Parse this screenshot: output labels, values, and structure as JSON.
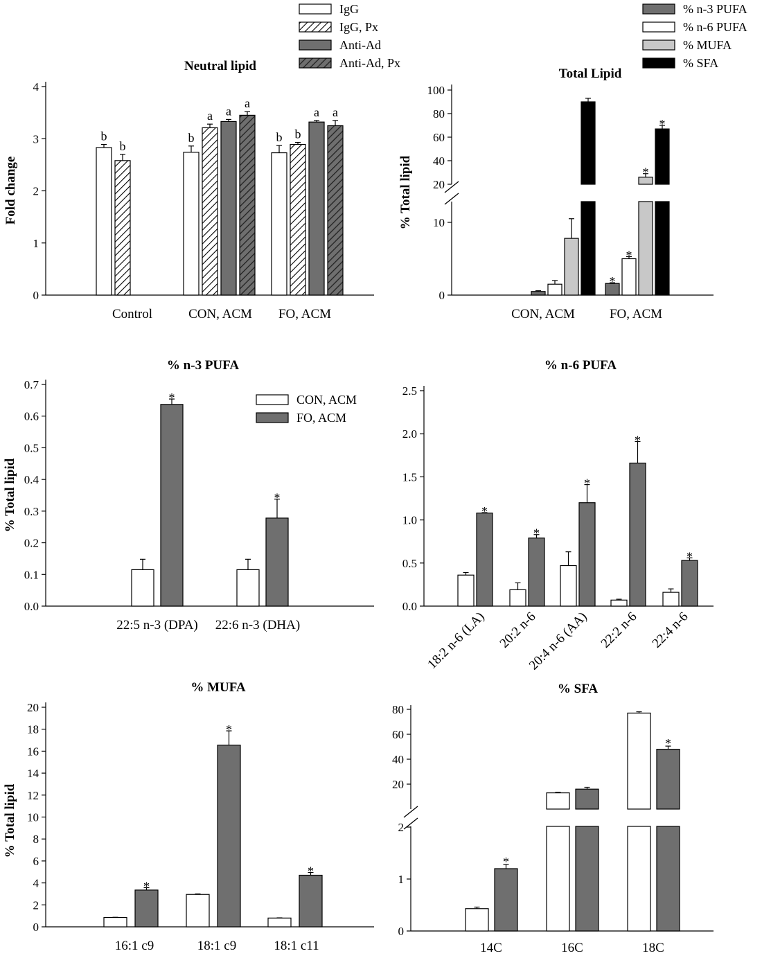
{
  "colors": {
    "dark": "#6f6f6f",
    "light": "#c8c8c8",
    "black": "#000000",
    "white": "#ffffff"
  },
  "chart_data": [
    {
      "id": "neutral",
      "type": "bar",
      "title": "Neutral lipid",
      "ylabel": "Fold change",
      "ylim": [
        0,
        4
      ],
      "yticks": [
        "0",
        "1",
        "2",
        "3",
        "4"
      ],
      "categories": [
        "Control",
        "CON, ACM",
        "FO, ACM"
      ],
      "series": [
        {
          "name": "IgG",
          "fill": "white",
          "values": [
            2.83,
            2.74,
            2.73
          ],
          "errors": [
            0.06,
            0.12,
            0.14
          ],
          "labels": [
            "b",
            "b",
            "b"
          ]
        },
        {
          "name": "IgG, Px",
          "fill": "hatch",
          "values": [
            2.58,
            3.21,
            2.89
          ],
          "errors": [
            0.12,
            0.07,
            0.04
          ],
          "labels": [
            "b",
            "a",
            "b"
          ]
        },
        {
          "name": "Anti-Ad",
          "fill": "dark",
          "values": [
            null,
            3.33,
            3.32
          ],
          "errors": [
            null,
            0.04,
            0.03
          ],
          "labels": [
            "",
            "a",
            "a"
          ]
        },
        {
          "name": "Anti-Ad, Px",
          "fill": "darkhatch",
          "values": [
            null,
            3.45,
            3.25
          ],
          "errors": [
            null,
            0.07,
            0.1
          ],
          "labels": [
            "",
            "a",
            "a"
          ]
        }
      ]
    },
    {
      "id": "total",
      "type": "bar",
      "title": "Total Lipid",
      "ylabel": "% Total lipid",
      "yticks_upper": [
        "20",
        "40",
        "60",
        "80",
        "100"
      ],
      "yticks_lower": [
        "0",
        "10"
      ],
      "categories": [
        "CON, ACM",
        "FO, ACM"
      ],
      "series": [
        {
          "name": "% n-3 PUFA",
          "fill": "dark",
          "values": [
            0.5,
            1.6
          ],
          "errors": [
            0.1,
            0.1
          ],
          "labels": [
            "",
            "*"
          ]
        },
        {
          "name": "% n-6 PUFA",
          "fill": "white",
          "values": [
            1.5,
            5.0
          ],
          "errors": [
            0.5,
            0.3
          ],
          "labels": [
            "",
            "*"
          ]
        },
        {
          "name": "% MUFA",
          "fill": "light",
          "values": [
            7.8,
            26
          ],
          "errors": [
            2.7,
            3
          ],
          "labels": [
            "",
            "*"
          ]
        },
        {
          "name": "% SFA",
          "fill": "black",
          "values": [
            90,
            67
          ],
          "errors": [
            3,
            3
          ],
          "labels": [
            "",
            "*"
          ]
        }
      ]
    },
    {
      "id": "n3",
      "type": "bar",
      "title": "% n-3 PUFA",
      "ylabel": "% Total lipid",
      "ylim": [
        0,
        0.7
      ],
      "yticks": [
        "0.0",
        "0.1",
        "0.2",
        "0.3",
        "0.4",
        "0.5",
        "0.6",
        "0.7"
      ],
      "categories": [
        "22:5 n-3 (DPA)",
        "22:6 n-3 (DHA)"
      ],
      "series": [
        {
          "name": "CON, ACM",
          "fill": "white",
          "values": [
            0.115,
            0.115
          ],
          "errors": [
            0.033,
            0.033
          ],
          "labels": [
            "",
            ""
          ]
        },
        {
          "name": "FO, ACM",
          "fill": "dark",
          "values": [
            0.637,
            0.278
          ],
          "errors": [
            0.017,
            0.06
          ],
          "labels": [
            "*",
            "*"
          ]
        }
      ]
    },
    {
      "id": "n6",
      "type": "bar",
      "title": "% n-6 PUFA",
      "ylabel": "",
      "ylim": [
        0,
        2.5
      ],
      "yticks": [
        "0.0",
        "0.5",
        "1.0",
        "1.5",
        "2.0",
        "2.5"
      ],
      "categories": [
        "18:2 n-6 (LA)",
        "20:2 n-6",
        "20:4 n-6 (AA)",
        "22:2 n-6",
        "22:4 n-6"
      ],
      "series": [
        {
          "name": "CON, ACM",
          "fill": "white",
          "values": [
            0.36,
            0.19,
            0.47,
            0.07,
            0.16
          ],
          "errors": [
            0.03,
            0.08,
            0.16,
            0.01,
            0.04
          ],
          "labels": [
            "",
            "",
            "",
            "",
            ""
          ]
        },
        {
          "name": "FO, ACM",
          "fill": "dark",
          "values": [
            1.08,
            0.79,
            1.2,
            1.66,
            0.53
          ],
          "errors": [
            0.005,
            0.04,
            0.21,
            0.25,
            0.03
          ],
          "labels": [
            "*",
            "*",
            "*",
            "*",
            "*"
          ]
        }
      ]
    },
    {
      "id": "mufa",
      "type": "bar",
      "title": "% MUFA",
      "ylabel": "% Total lipid",
      "ylim": [
        0,
        20
      ],
      "yticks": [
        "0",
        "2",
        "4",
        "6",
        "8",
        "10",
        "12",
        "14",
        "16",
        "18",
        "20"
      ],
      "categories": [
        "16:1 c9",
        "18:1 c9",
        "18:1 c11"
      ],
      "series": [
        {
          "name": "CON, ACM",
          "fill": "white",
          "values": [
            0.85,
            2.95,
            0.8
          ],
          "errors": [
            0.02,
            0.05,
            0.02
          ],
          "labels": [
            "",
            "",
            ""
          ]
        },
        {
          "name": "FO, ACM",
          "fill": "dark",
          "values": [
            3.35,
            16.55,
            4.7
          ],
          "errors": [
            0.22,
            1.3,
            0.25
          ],
          "labels": [
            "*",
            "*",
            "*"
          ]
        }
      ]
    },
    {
      "id": "sfa",
      "type": "bar",
      "title": "% SFA",
      "ylabel": "",
      "yticks_upper": [
        "20",
        "40",
        "60",
        "80"
      ],
      "yticks_lower": [
        "0",
        "1",
        "2"
      ],
      "categories": [
        "14C",
        "16C",
        "18C"
      ],
      "series": [
        {
          "name": "CON, ACM",
          "fill": "white",
          "values": [
            0.43,
            13,
            77
          ],
          "errors": [
            0.03,
            0.5,
            1
          ],
          "labels": [
            "",
            "",
            ""
          ]
        },
        {
          "name": "FO, ACM",
          "fill": "dark",
          "values": [
            1.2,
            16,
            48
          ],
          "errors": [
            0.08,
            1.5,
            2.5
          ],
          "labels": [
            "*",
            "",
            "*"
          ]
        }
      ]
    }
  ]
}
